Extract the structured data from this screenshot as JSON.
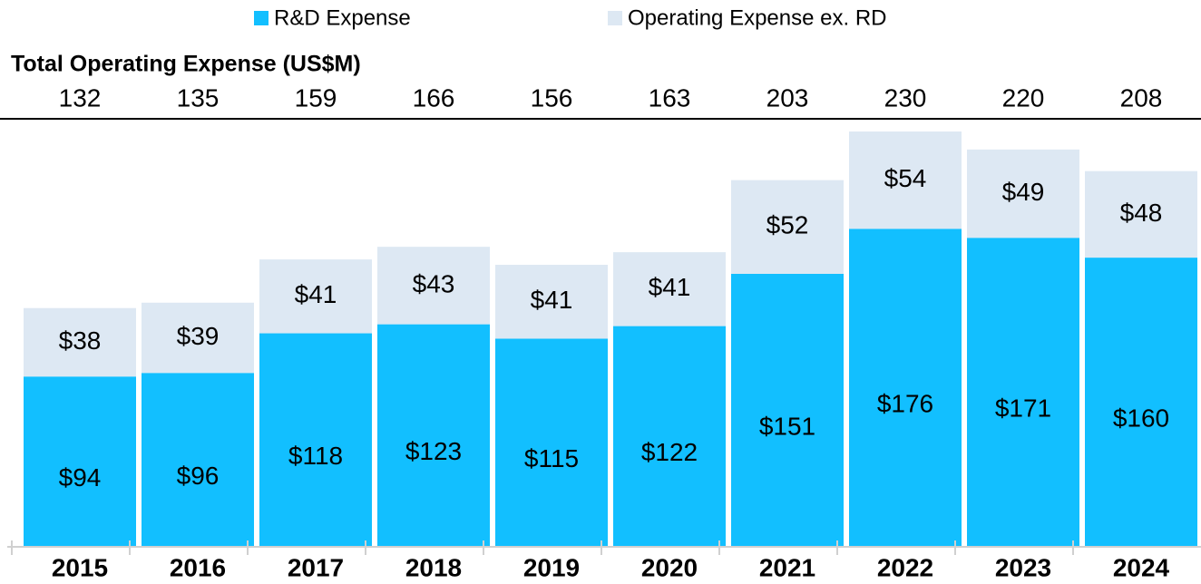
{
  "chart_data": {
    "type": "stacked_bar",
    "title": "Total Operating Expense (US$M)",
    "categories": [
      "2015",
      "2016",
      "2017",
      "2018",
      "2019",
      "2020",
      "2021",
      "2022",
      "2023",
      "2024"
    ],
    "totals": [
      132,
      135,
      159,
      166,
      156,
      163,
      203,
      230,
      220,
      208
    ],
    "series": [
      {
        "name": "R&D Expense",
        "color": "#12bfff",
        "values": [
          94,
          96,
          118,
          123,
          115,
          122,
          151,
          176,
          171,
          160
        ],
        "value_labels": [
          "$94",
          "$96",
          "$118",
          "$123",
          "$115",
          "$122",
          "$151",
          "$176",
          "$171",
          "$160"
        ]
      },
      {
        "name": "Operating Expense ex. RD",
        "color": "#dde8f3",
        "values": [
          38,
          39,
          41,
          43,
          41,
          41,
          52,
          54,
          49,
          48
        ],
        "value_labels": [
          "$38",
          "$39",
          "$41",
          "$43",
          "$41",
          "$41",
          "$52",
          "$54",
          "$49",
          "$48"
        ]
      }
    ],
    "ylim": [
      0,
      230
    ],
    "legend": "top"
  }
}
